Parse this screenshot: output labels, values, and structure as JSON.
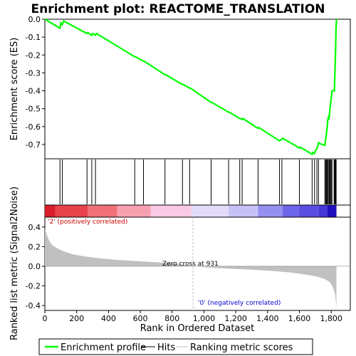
{
  "chart_data": {
    "type": "line",
    "title": "Enrichment plot: REACTOME_TRANSLATION",
    "xlabel": "Rank in Ordered Dataset",
    "ylabel_top": "Enrichment score (ES)",
    "ylabel_bottom": "Ranked list metric (Signal2Noise)",
    "xlim": [
      0,
      1920
    ],
    "x_ticks": [
      "0",
      "200",
      "400",
      "600",
      "800",
      "1,000",
      "1,200",
      "1,400",
      "1,600",
      "1,800"
    ],
    "es_ylim": [
      -0.78,
      0.0
    ],
    "es_ticks": [
      "0.0",
      "-0.1",
      "-0.2",
      "-0.3",
      "-0.4",
      "-0.5",
      "-0.6",
      "-0.7"
    ],
    "metric_ylim": [
      -0.45,
      0.5
    ],
    "metric_ticks": [
      "0.4",
      "0.2",
      "0.0",
      "-0.2",
      "-0.4"
    ],
    "colors": {
      "es_line": "#00ff00",
      "hits": "#000000",
      "metric_fill": "#c0c0c0",
      "positive_label": "#cc0000",
      "negative_label": "#0000cc",
      "zero_cross_line": "#c0c0c0"
    },
    "es_curve": [
      [
        0,
        0.0
      ],
      [
        95,
        -0.05
      ],
      [
        100,
        -0.02
      ],
      [
        110,
        -0.03
      ],
      [
        118,
        -0.01
      ],
      [
        265,
        -0.08
      ],
      [
        270,
        -0.075
      ],
      [
        295,
        -0.09
      ],
      [
        300,
        -0.08
      ],
      [
        318,
        -0.09
      ],
      [
        325,
        -0.08
      ],
      [
        565,
        -0.21
      ],
      [
        570,
        -0.21
      ],
      [
        620,
        -0.235
      ],
      [
        625,
        -0.235
      ],
      [
        755,
        -0.31
      ],
      [
        760,
        -0.31
      ],
      [
        865,
        -0.365
      ],
      [
        870,
        -0.365
      ],
      [
        910,
        -0.385
      ],
      [
        915,
        -0.385
      ],
      [
        1045,
        -0.465
      ],
      [
        1050,
        -0.465
      ],
      [
        1155,
        -0.52
      ],
      [
        1160,
        -0.52
      ],
      [
        1225,
        -0.555
      ],
      [
        1230,
        -0.555
      ],
      [
        1240,
        -0.56
      ],
      [
        1245,
        -0.555
      ],
      [
        1340,
        -0.61
      ],
      [
        1345,
        -0.605
      ],
      [
        1475,
        -0.68
      ],
      [
        1480,
        -0.675
      ],
      [
        1490,
        -0.67
      ],
      [
        1495,
        -0.665
      ],
      [
        1600,
        -0.72
      ],
      [
        1605,
        -0.715
      ],
      [
        1680,
        -0.755
      ],
      [
        1685,
        -0.745
      ],
      [
        1695,
        -0.75
      ],
      [
        1700,
        -0.735
      ],
      [
        1710,
        -0.725
      ],
      [
        1715,
        -0.71
      ],
      [
        1720,
        -0.69
      ],
      [
        1728,
        -0.695
      ],
      [
        1760,
        -0.705
      ],
      [
        1765,
        -0.67
      ],
      [
        1770,
        -0.64
      ],
      [
        1775,
        -0.6
      ],
      [
        1778,
        -0.565
      ],
      [
        1782,
        -0.55
      ],
      [
        1786,
        -0.56
      ],
      [
        1790,
        -0.52
      ],
      [
        1795,
        -0.48
      ],
      [
        1800,
        -0.44
      ],
      [
        1805,
        -0.4
      ],
      [
        1812,
        -0.4
      ],
      [
        1820,
        -0.4
      ],
      [
        1822,
        -0.33
      ],
      [
        1825,
        -0.25
      ],
      [
        1828,
        -0.15
      ],
      [
        1830,
        -0.06
      ],
      [
        1833,
        0.0
      ]
    ],
    "hits": [
      95,
      110,
      265,
      295,
      318,
      565,
      620,
      755,
      865,
      910,
      1045,
      1155,
      1225,
      1240,
      1340,
      1475,
      1490,
      1600,
      1680,
      1695,
      1710,
      1720,
      1760,
      1765,
      1770,
      1775,
      1780,
      1786,
      1790,
      1795,
      1800,
      1805,
      1818,
      1822,
      1825,
      1828,
      1831
    ],
    "metric_curve": [
      [
        0,
        0.38
      ],
      [
        5,
        0.36
      ],
      [
        15,
        0.31
      ],
      [
        30,
        0.25
      ],
      [
        50,
        0.21
      ],
      [
        80,
        0.18
      ],
      [
        120,
        0.15
      ],
      [
        180,
        0.12
      ],
      [
        250,
        0.1
      ],
      [
        350,
        0.08
      ],
      [
        450,
        0.065
      ],
      [
        600,
        0.05
      ],
      [
        800,
        0.03
      ],
      [
        931,
        0.0
      ],
      [
        1100,
        -0.02
      ],
      [
        1300,
        -0.035
      ],
      [
        1450,
        -0.05
      ],
      [
        1550,
        -0.065
      ],
      [
        1620,
        -0.08
      ],
      [
        1680,
        -0.095
      ],
      [
        1720,
        -0.11
      ],
      [
        1760,
        -0.13
      ],
      [
        1790,
        -0.16
      ],
      [
        1810,
        -0.21
      ],
      [
        1825,
        -0.29
      ],
      [
        1833,
        -0.42
      ]
    ],
    "heatmap_blocks": [
      {
        "x0": 0,
        "x1": 65,
        "color": "#d81e2a"
      },
      {
        "x0": 65,
        "x1": 270,
        "color": "#e8434c"
      },
      {
        "x0": 270,
        "x1": 455,
        "color": "#f07078"
      },
      {
        "x0": 455,
        "x1": 665,
        "color": "#f7a0b0"
      },
      {
        "x0": 665,
        "x1": 920,
        "color": "#fbc8e6"
      },
      {
        "x0": 920,
        "x1": 1155,
        "color": "#e2dcfa"
      },
      {
        "x0": 1155,
        "x1": 1340,
        "color": "#c6c2f6"
      },
      {
        "x0": 1340,
        "x1": 1495,
        "color": "#9590f0"
      },
      {
        "x0": 1495,
        "x1": 1600,
        "color": "#6d66ea"
      },
      {
        "x0": 1600,
        "x1": 1720,
        "color": "#5a4ee0"
      },
      {
        "x0": 1720,
        "x1": 1775,
        "color": "#4638d8"
      },
      {
        "x0": 1775,
        "x1": 1833,
        "color": "#2210bf"
      }
    ],
    "zero_cross_rank": 931,
    "annotations": {
      "positive": "'2' (positively correlated)",
      "negative": "'0' (negatively correlated)",
      "zero_cross": "Zero cross at 931"
    },
    "legend": {
      "enrichment_profile": "Enrichment profile",
      "hits": "Hits",
      "ranking_metric": "Ranking metric scores"
    }
  }
}
